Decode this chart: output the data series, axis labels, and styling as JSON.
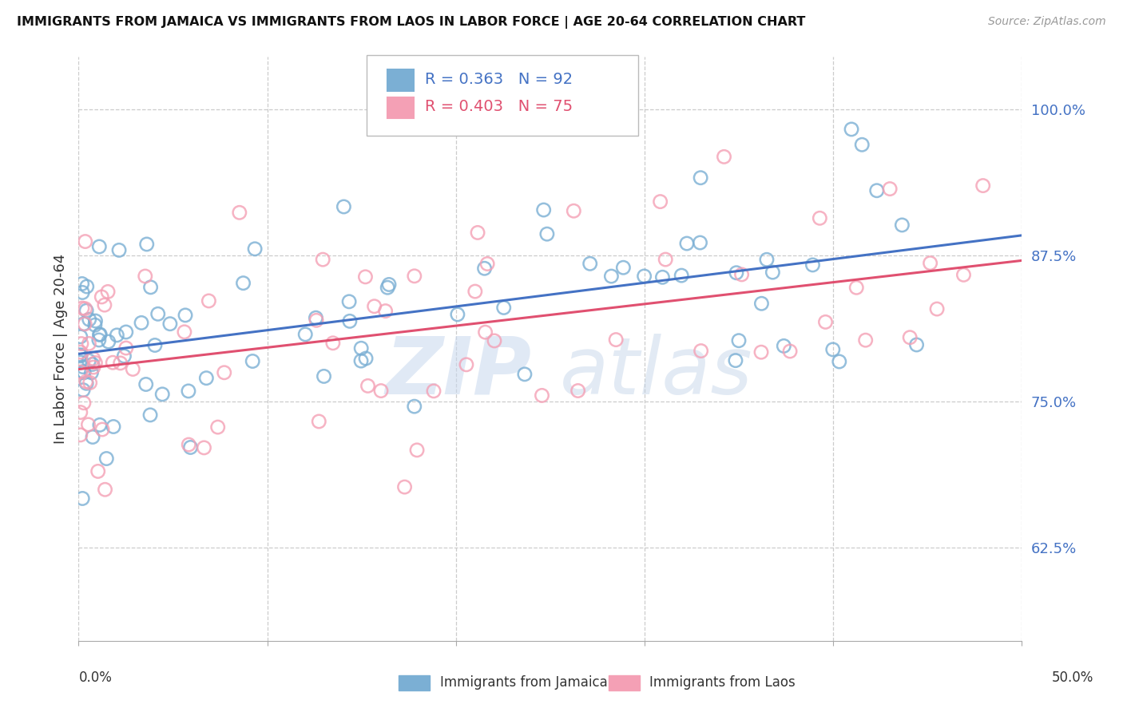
{
  "title": "IMMIGRANTS FROM JAMAICA VS IMMIGRANTS FROM LAOS IN LABOR FORCE | AGE 20-64 CORRELATION CHART",
  "source": "Source: ZipAtlas.com",
  "ylabel": "In Labor Force | Age 20-64",
  "ytick_labels": [
    "100.0%",
    "87.5%",
    "75.0%",
    "62.5%"
  ],
  "ytick_values": [
    1.0,
    0.875,
    0.75,
    0.625
  ],
  "xlim": [
    0.0,
    0.5
  ],
  "ylim": [
    0.545,
    1.045
  ],
  "xtick_positions": [
    0.0,
    0.1,
    0.2,
    0.3,
    0.4,
    0.5
  ],
  "jamaica_color_edge": "#7BAFD4",
  "laos_color_edge": "#F4A0B5",
  "jamaica_line_color": "#4472C4",
  "laos_line_color": "#E05070",
  "jamaica_R": 0.363,
  "jamaica_N": 92,
  "laos_R": 0.403,
  "laos_N": 75,
  "legend_label_jamaica": "Immigrants from Jamaica",
  "legend_label_laos": "Immigrants from Laos",
  "watermark_zip": "ZIP",
  "watermark_atlas": "atlas",
  "grid_color": "#CCCCCC",
  "right_tick_color": "#4472C4",
  "title_color": "#111111",
  "source_color": "#999999",
  "ylabel_color": "#333333"
}
